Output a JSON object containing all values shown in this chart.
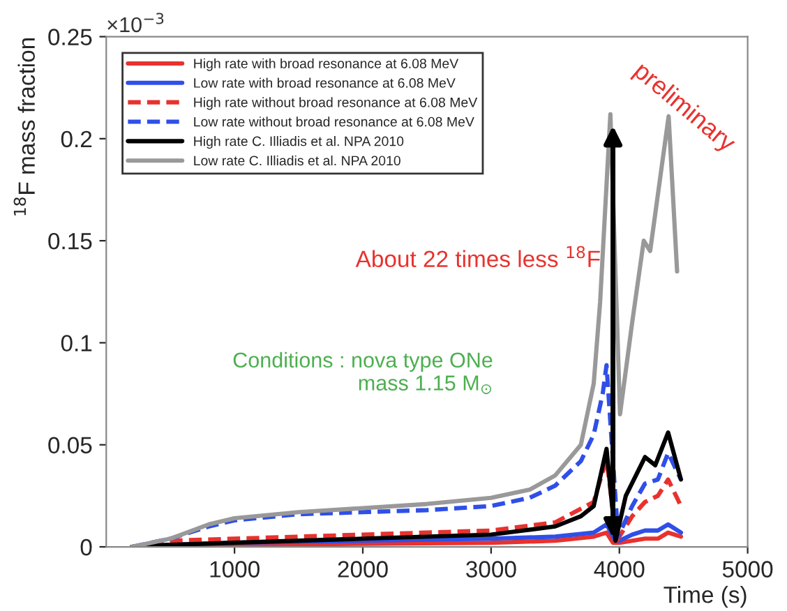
{
  "chart_data": {
    "type": "line",
    "xlabel": "Time (s)",
    "ylabel": "$^{18}$F mass fraction",
    "xlim": [
      0,
      5000
    ],
    "xticks": [
      1000,
      2000,
      3000,
      4000,
      5000
    ],
    "ylim": [
      0,
      0.25
    ],
    "yticks": [
      0,
      0.05,
      0.1,
      0.15,
      0.2,
      0.25
    ],
    "legend": "top left",
    "grid": false,
    "annotations": [
      "×10$^{−3}$",
      "About 22 times less $^{18}$F",
      "Conditions : nova type ONe\nmass 1.15 M$_{⊙}$",
      "preliminary"
    ],
    "series": [
      {
        "name": "High rate with broad resonance at 6.08 MeV",
        "color": "#e8322e",
        "line_style": "solid",
        "x": [
          200,
          500,
          1000,
          2000,
          3000,
          3500,
          3800,
          3900,
          3950,
          4000,
          4100,
          4200,
          4300,
          4380,
          4480
        ],
        "values": [
          0,
          0.0005,
          0.001,
          0.0015,
          0.002,
          0.003,
          0.005,
          0.007,
          0.002,
          0.002,
          0.003,
          0.004,
          0.004,
          0.007,
          0.005
        ]
      },
      {
        "name": "Low rate with broad resonance at 6.08 MeV",
        "color": "#2f4fe8",
        "line_style": "solid",
        "x": [
          200,
          500,
          1000,
          2000,
          3000,
          3500,
          3800,
          3900,
          3970,
          4000,
          4100,
          4200,
          4300,
          4380,
          4480
        ],
        "values": [
          0,
          0.001,
          0.002,
          0.003,
          0.004,
          0.005,
          0.007,
          0.011,
          0.003,
          0.003,
          0.006,
          0.008,
          0.008,
          0.011,
          0.007
        ]
      },
      {
        "name": "High rate without broad resonance at 6.08 MeV",
        "color": "#e8322e",
        "line_style": "dashed",
        "x": [
          200,
          500,
          1000,
          2000,
          3000,
          3500,
          3800,
          3900,
          3980,
          4100,
          4200,
          4300,
          4380,
          4480
        ],
        "values": [
          0,
          0.003,
          0.004,
          0.006,
          0.008,
          0.012,
          0.022,
          0.043,
          0.003,
          0.015,
          0.022,
          0.025,
          0.033,
          0.02
        ]
      },
      {
        "name": "Low rate without broad resonance at 6.08 MeV",
        "color": "#2f4fe8",
        "line_style": "dashed",
        "x": [
          200,
          500,
          800,
          1000,
          1500,
          2000,
          2500,
          3000,
          3300,
          3500,
          3700,
          3800,
          3870,
          3900,
          3990,
          4100,
          4200,
          4300,
          4380,
          4480
        ],
        "values": [
          0,
          0.004,
          0.01,
          0.013,
          0.016,
          0.017,
          0.018,
          0.02,
          0.024,
          0.03,
          0.042,
          0.055,
          0.075,
          0.089,
          0.005,
          0.02,
          0.031,
          0.033,
          0.046,
          0.033
        ]
      },
      {
        "name": "High rate C. Illiadis et al. NPA 2010",
        "color": "#000000",
        "line_style": "solid",
        "x": [
          200,
          500,
          1000,
          2000,
          3000,
          3500,
          3700,
          3800,
          3900,
          3970,
          4050,
          4200,
          4280,
          4380,
          4480
        ],
        "values": [
          0,
          0.001,
          0.002,
          0.004,
          0.006,
          0.01,
          0.015,
          0.02,
          0.048,
          0.003,
          0.025,
          0.044,
          0.04,
          0.056,
          0.033
        ]
      },
      {
        "name": "Low rate C. Illiadis et al. NPA 2010",
        "color": "#999999",
        "line_style": "solid",
        "x": [
          200,
          500,
          800,
          1000,
          1500,
          2000,
          2500,
          3000,
          3300,
          3500,
          3700,
          3800,
          3850,
          3930,
          4005,
          4100,
          4190,
          4240,
          4384,
          4450
        ],
        "values": [
          0,
          0.004,
          0.011,
          0.014,
          0.017,
          0.019,
          0.021,
          0.024,
          0.028,
          0.035,
          0.05,
          0.08,
          0.12,
          0.212,
          0.065,
          0.11,
          0.15,
          0.145,
          0.211,
          0.135
        ]
      }
    ]
  }
}
